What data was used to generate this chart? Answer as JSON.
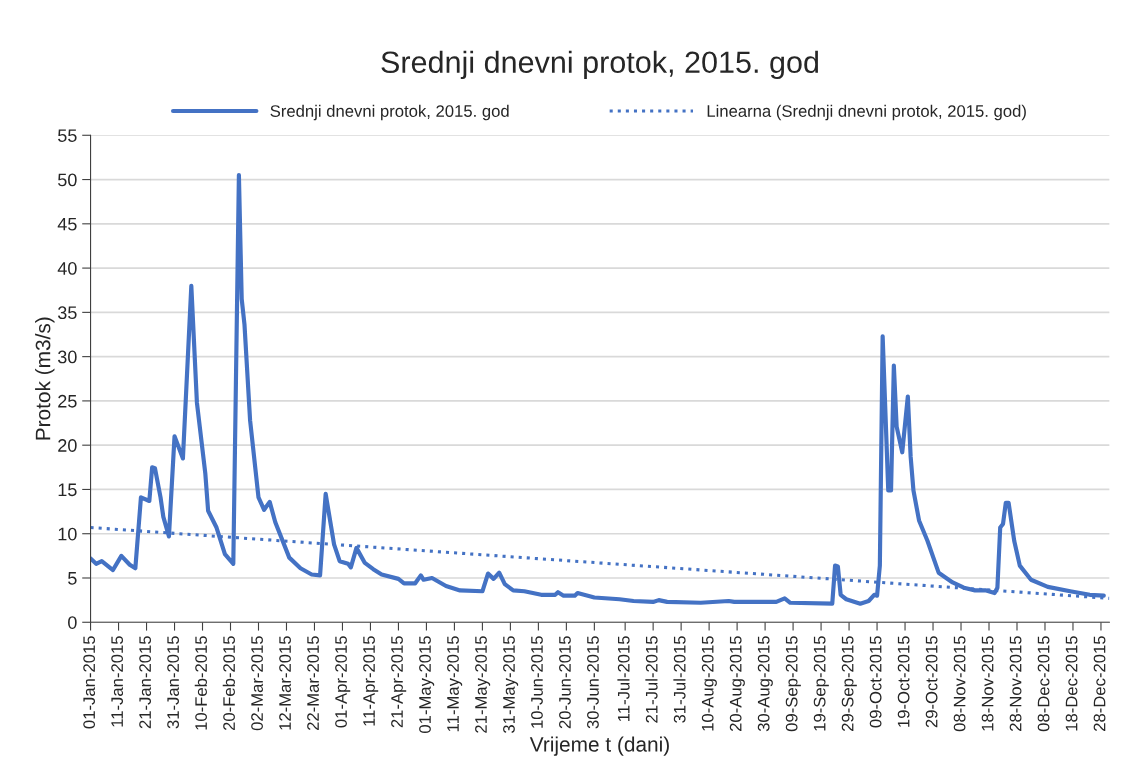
{
  "chart_data": {
    "type": "line",
    "title": "Srednji dnevni protok, 2015. god",
    "xlabel": "Vrijeme t (dani)",
    "ylabel": "Protok (m3/s)",
    "series": [
      {
        "name": "Srednji dnevni protok, 2015. god",
        "color": "#4472c4",
        "line_style": "solid",
        "x": [
          "2015-01-01",
          "2015-01-03",
          "2015-01-05",
          "2015-01-09",
          "2015-01-12",
          "2015-01-15",
          "2015-01-17",
          "2015-01-19",
          "2015-01-22",
          "2015-01-23",
          "2015-01-24",
          "2015-01-26",
          "2015-01-27",
          "2015-01-29",
          "2015-01-31",
          "2015-02-03",
          "2015-02-06",
          "2015-02-08",
          "2015-02-11",
          "2015-02-12",
          "2015-02-15",
          "2015-02-18",
          "2015-02-21",
          "2015-02-23",
          "2015-02-24",
          "2015-02-25",
          "2015-02-27",
          "2015-03-02",
          "2015-03-04",
          "2015-03-06",
          "2015-03-08",
          "2015-03-13",
          "2015-03-17",
          "2015-03-21",
          "2015-03-24",
          "2015-03-26",
          "2015-03-29",
          "2015-03-31",
          "2015-04-03",
          "2015-04-04",
          "2015-04-06",
          "2015-04-09",
          "2015-04-12",
          "2015-04-15",
          "2015-04-21",
          "2015-04-23",
          "2015-04-27",
          "2015-04-29",
          "2015-04-30",
          "2015-05-03",
          "2015-05-08",
          "2015-05-13",
          "2015-05-21",
          "2015-05-23",
          "2015-05-25",
          "2015-05-27",
          "2015-05-29",
          "2015-06-01",
          "2015-06-05",
          "2015-06-11",
          "2015-06-16",
          "2015-06-17",
          "2015-06-19",
          "2015-06-23",
          "2015-06-24",
          "2015-06-30",
          "2015-07-09",
          "2015-07-14",
          "2015-07-21",
          "2015-07-23",
          "2015-07-26",
          "2015-08-07",
          "2015-08-17",
          "2015-08-19",
          "2015-08-31",
          "2015-09-03",
          "2015-09-06",
          "2015-09-08",
          "2015-09-23",
          "2015-09-24",
          "2015-09-25",
          "2015-09-26",
          "2015-09-28",
          "2015-10-03",
          "2015-10-06",
          "2015-10-08",
          "2015-10-09",
          "2015-10-10",
          "2015-10-11",
          "2015-10-13",
          "2015-10-14",
          "2015-10-15",
          "2015-10-16",
          "2015-10-18",
          "2015-10-20",
          "2015-10-21",
          "2015-10-22",
          "2015-10-24",
          "2015-10-27",
          "2015-10-31",
          "2015-11-05",
          "2015-11-09",
          "2015-11-13",
          "2015-11-17",
          "2015-11-20",
          "2015-11-21",
          "2015-11-22",
          "2015-11-23",
          "2015-11-24",
          "2015-11-25",
          "2015-11-27",
          "2015-11-29",
          "2015-12-03",
          "2015-12-09",
          "2015-12-17",
          "2015-12-24",
          "2015-12-29"
        ],
        "values": [
          7.2,
          6.6,
          6.9,
          5.9,
          7.5,
          6.5,
          6.1,
          14.1,
          13.7,
          17.5,
          17.4,
          14.1,
          11.9,
          9.7,
          21.0,
          18.5,
          38.0,
          24.8,
          16.8,
          12.6,
          10.7,
          7.7,
          6.6,
          50.5,
          36.5,
          33.6,
          22.8,
          14.1,
          12.7,
          13.6,
          11.3,
          7.3,
          6.1,
          5.4,
          5.3,
          14.5,
          8.8,
          6.9,
          6.6,
          6.2,
          8.4,
          6.7,
          6.0,
          5.4,
          4.9,
          4.4,
          4.4,
          5.3,
          4.8,
          5.0,
          4.1,
          3.6,
          3.5,
          5.5,
          4.9,
          5.6,
          4.3,
          3.6,
          3.5,
          3.1,
          3.1,
          3.4,
          3.0,
          3.0,
          3.3,
          2.8,
          2.6,
          2.4,
          2.3,
          2.5,
          2.3,
          2.2,
          2.4,
          2.3,
          2.3,
          2.3,
          2.7,
          2.2,
          2.1,
          6.4,
          6.3,
          3.1,
          2.6,
          2.1,
          2.4,
          3.1,
          3.0,
          6.4,
          32.3,
          14.9,
          14.9,
          29.0,
          22.1,
          19.2,
          25.5,
          18.7,
          14.9,
          11.5,
          9.2,
          5.6,
          4.5,
          3.9,
          3.6,
          3.6,
          3.3,
          3.9,
          10.7,
          11.1,
          13.5,
          13.5,
          9.2,
          6.4,
          4.8,
          4.0,
          3.5,
          3.1,
          3.0
        ]
      },
      {
        "name": "Linearna (Srednji dnevni protok, 2015. god)",
        "color": "#4472c4",
        "line_style": "dotted",
        "x": [
          "2015-01-01",
          "2015-12-31"
        ],
        "values": [
          10.7,
          2.7
        ]
      }
    ],
    "xlim": [
      "2015-01-01",
      "2015-12-31"
    ],
    "xticks": [
      {
        "value": "2015-01-01",
        "label": "01-Jan-2015"
      },
      {
        "value": "2015-01-11",
        "label": "11-Jan-2015"
      },
      {
        "value": "2015-01-21",
        "label": "21-Jan-2015"
      },
      {
        "value": "2015-01-31",
        "label": "31-Jan-2015"
      },
      {
        "value": "2015-02-10",
        "label": "10-Feb-2015"
      },
      {
        "value": "2015-02-20",
        "label": "20-Feb-2015"
      },
      {
        "value": "2015-03-02",
        "label": "02-Mar-2015"
      },
      {
        "value": "2015-03-12",
        "label": "12-Mar-2015"
      },
      {
        "value": "2015-03-22",
        "label": "22-Mar-2015"
      },
      {
        "value": "2015-04-01",
        "label": "01-Apr-2015"
      },
      {
        "value": "2015-04-11",
        "label": "11-Apr-2015"
      },
      {
        "value": "2015-04-21",
        "label": "21-Apr-2015"
      },
      {
        "value": "2015-05-01",
        "label": "01-May-2015"
      },
      {
        "value": "2015-05-11",
        "label": "11-May-2015"
      },
      {
        "value": "2015-05-21",
        "label": "21-May-2015"
      },
      {
        "value": "2015-05-31",
        "label": "31-May-2015"
      },
      {
        "value": "2015-06-10",
        "label": "10-Jun-2015"
      },
      {
        "value": "2015-06-20",
        "label": "20-Jun-2015"
      },
      {
        "value": "2015-06-30",
        "label": "30-Jun-2015"
      },
      {
        "value": "2015-07-11",
        "label": "11-Jul-2015"
      },
      {
        "value": "2015-07-21",
        "label": "21-Jul-2015"
      },
      {
        "value": "2015-07-31",
        "label": "31-Jul-2015"
      },
      {
        "value": "2015-08-10",
        "label": "10-Aug-2015"
      },
      {
        "value": "2015-08-20",
        "label": "20-Aug-2015"
      },
      {
        "value": "2015-08-30",
        "label": "30-Aug-2015"
      },
      {
        "value": "2015-09-09",
        "label": "09-Sep-2015"
      },
      {
        "value": "2015-09-19",
        "label": "19-Sep-2015"
      },
      {
        "value": "2015-09-29",
        "label": "29-Sep-2015"
      },
      {
        "value": "2015-10-09",
        "label": "09-Oct-2015"
      },
      {
        "value": "2015-10-19",
        "label": "19-Oct-2015"
      },
      {
        "value": "2015-10-29",
        "label": "29-Oct-2015"
      },
      {
        "value": "2015-11-08",
        "label": "08-Nov-2015"
      },
      {
        "value": "2015-11-18",
        "label": "18-Nov-2015"
      },
      {
        "value": "2015-11-28",
        "label": "28-Nov-2015"
      },
      {
        "value": "2015-12-08",
        "label": "08-Dec-2015"
      },
      {
        "value": "2015-12-18",
        "label": "18-Dec-2015"
      },
      {
        "value": "2015-12-28",
        "label": "28-Dec-2015"
      }
    ],
    "ylim": [
      0,
      55
    ],
    "yticks": [
      0,
      5,
      10,
      15,
      20,
      25,
      30,
      35,
      40,
      45,
      50,
      55
    ],
    "grid": "y",
    "legend": "top"
  }
}
